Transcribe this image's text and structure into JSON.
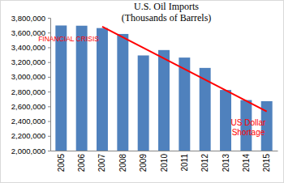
{
  "chart_data": {
    "type": "bar",
    "title": "U.S. Oil Imports",
    "subtitle": "(Thousands of Barrels)",
    "categories": [
      "2005",
      "2006",
      "2007",
      "2008",
      "2009",
      "2010",
      "2011",
      "2012",
      "2013",
      "2014",
      "2015"
    ],
    "values": [
      3696000,
      3693000,
      3661000,
      3581000,
      3290000,
      3363000,
      3261000,
      3121000,
      2822000,
      2685000,
      2670000
    ],
    "color": "#4f81bd",
    "ylim": [
      2000000,
      3800000
    ],
    "yticks": [
      {
        "value": 2000000,
        "label": "2,000,000"
      },
      {
        "value": 2200000,
        "label": "2,200,000"
      },
      {
        "value": 2400000,
        "label": "2,400,000"
      },
      {
        "value": 2600000,
        "label": "2,600,000"
      },
      {
        "value": 2800000,
        "label": "2,800,000"
      },
      {
        "value": 3000000,
        "label": "3,000,000"
      },
      {
        "value": 3200000,
        "label": "3,200,000"
      },
      {
        "value": 3400000,
        "label": "3,400,000"
      },
      {
        "value": 3600000,
        "label": "3,600,000"
      },
      {
        "value": 3800000,
        "label": "3,800,000"
      }
    ],
    "grid": false,
    "trend_line": {
      "categories": [
        "2007",
        "2015"
      ],
      "values": [
        3680000,
        2530000
      ],
      "color": "#ff0000"
    },
    "annotations": [
      [
        "FINANCIAL CRISIS"
      ],
      [
        "US Dollar",
        "Shortage"
      ]
    ]
  }
}
